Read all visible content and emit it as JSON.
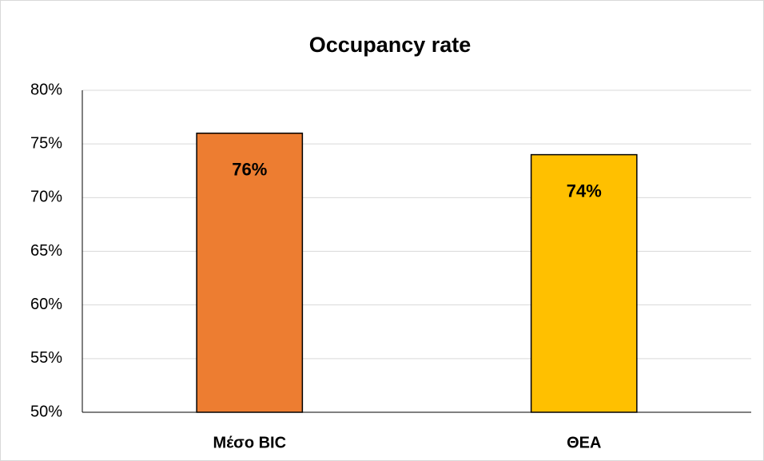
{
  "chart_data": {
    "type": "bar",
    "title": "Occupancy rate",
    "categories": [
      "Μέσο BIC",
      "ΘΕΑ"
    ],
    "values": [
      76,
      74
    ],
    "value_labels": [
      "76%",
      "74%"
    ],
    "colors": [
      "#ed7d31",
      "#ffc000"
    ],
    "ylim": [
      50,
      80
    ],
    "yticks": [
      {
        "value": 50,
        "label": "50%"
      },
      {
        "value": 55,
        "label": "55%"
      },
      {
        "value": 60,
        "label": "60%"
      },
      {
        "value": 65,
        "label": "65%"
      },
      {
        "value": 70,
        "label": "70%"
      },
      {
        "value": 75,
        "label": "75%"
      },
      {
        "value": 80,
        "label": "80%"
      }
    ],
    "grid": true
  }
}
